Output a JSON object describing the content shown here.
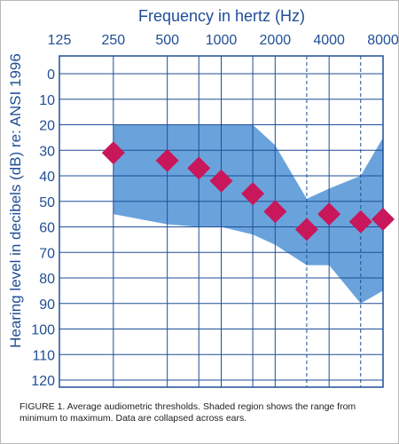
{
  "chart_data": {
    "type": "scatter",
    "title": "Frequency in hertz (Hz)",
    "xlabel": "Frequency in hertz (Hz)",
    "ylabel": "Hearing level in decibels (dB) re: ANSI 1996",
    "x_tick_labels": [
      "125",
      "250",
      "500",
      "1000",
      "2000",
      "4000",
      "8000"
    ],
    "x_ticks": [
      125,
      250,
      500,
      750,
      1000,
      1500,
      2000,
      3000,
      4000,
      6000,
      8000
    ],
    "x_dashed_ticks": [
      3000,
      6000
    ],
    "x_scale": "log",
    "y_tick_labels": [
      "0",
      "10",
      "20",
      "30",
      "40",
      "50",
      "60",
      "70",
      "80",
      "90",
      "100",
      "110",
      "120"
    ],
    "ylim": [
      0,
      120
    ],
    "y_inverted": true,
    "grid": true,
    "series": [
      {
        "type": "scatter",
        "marker": "diamond",
        "points": [
          {
            "x": 250,
            "y": 31
          },
          {
            "x": 500,
            "y": 34
          },
          {
            "x": 750,
            "y": 37
          },
          {
            "x": 1000,
            "y": 42
          },
          {
            "x": 1500,
            "y": 47
          },
          {
            "x": 2000,
            "y": 54
          },
          {
            "x": 3000,
            "y": 61
          },
          {
            "x": 4000,
            "y": 55
          },
          {
            "x": 6000,
            "y": 58
          },
          {
            "x": 8000,
            "y": 57
          }
        ]
      }
    ],
    "range_band": {
      "min": [
        {
          "x": 250,
          "y": 20
        },
        {
          "x": 500,
          "y": 20
        },
        {
          "x": 750,
          "y": 20
        },
        {
          "x": 1000,
          "y": 20
        },
        {
          "x": 1500,
          "y": 20
        },
        {
          "x": 2000,
          "y": 28
        },
        {
          "x": 3000,
          "y": 49
        },
        {
          "x": 4000,
          "y": 45
        },
        {
          "x": 6000,
          "y": 40
        },
        {
          "x": 8000,
          "y": 25
        }
      ],
      "max": [
        {
          "x": 250,
          "y": 55
        },
        {
          "x": 500,
          "y": 59
        },
        {
          "x": 750,
          "y": 60
        },
        {
          "x": 1000,
          "y": 60
        },
        {
          "x": 1500,
          "y": 63
        },
        {
          "x": 2000,
          "y": 67
        },
        {
          "x": 3000,
          "y": 75
        },
        {
          "x": 4000,
          "y": 75
        },
        {
          "x": 6000,
          "y": 90
        },
        {
          "x": 8000,
          "y": 85
        }
      ]
    }
  },
  "colors": {
    "grid": "#1f4e96",
    "band": "#6aa3dc",
    "marker": "#c8175b",
    "text": "#1f4e96"
  },
  "caption": "FIGURE 1. Average audiometric thresholds. Shaded region shows the range from minimum to maximum. Data are collapsed across ears."
}
